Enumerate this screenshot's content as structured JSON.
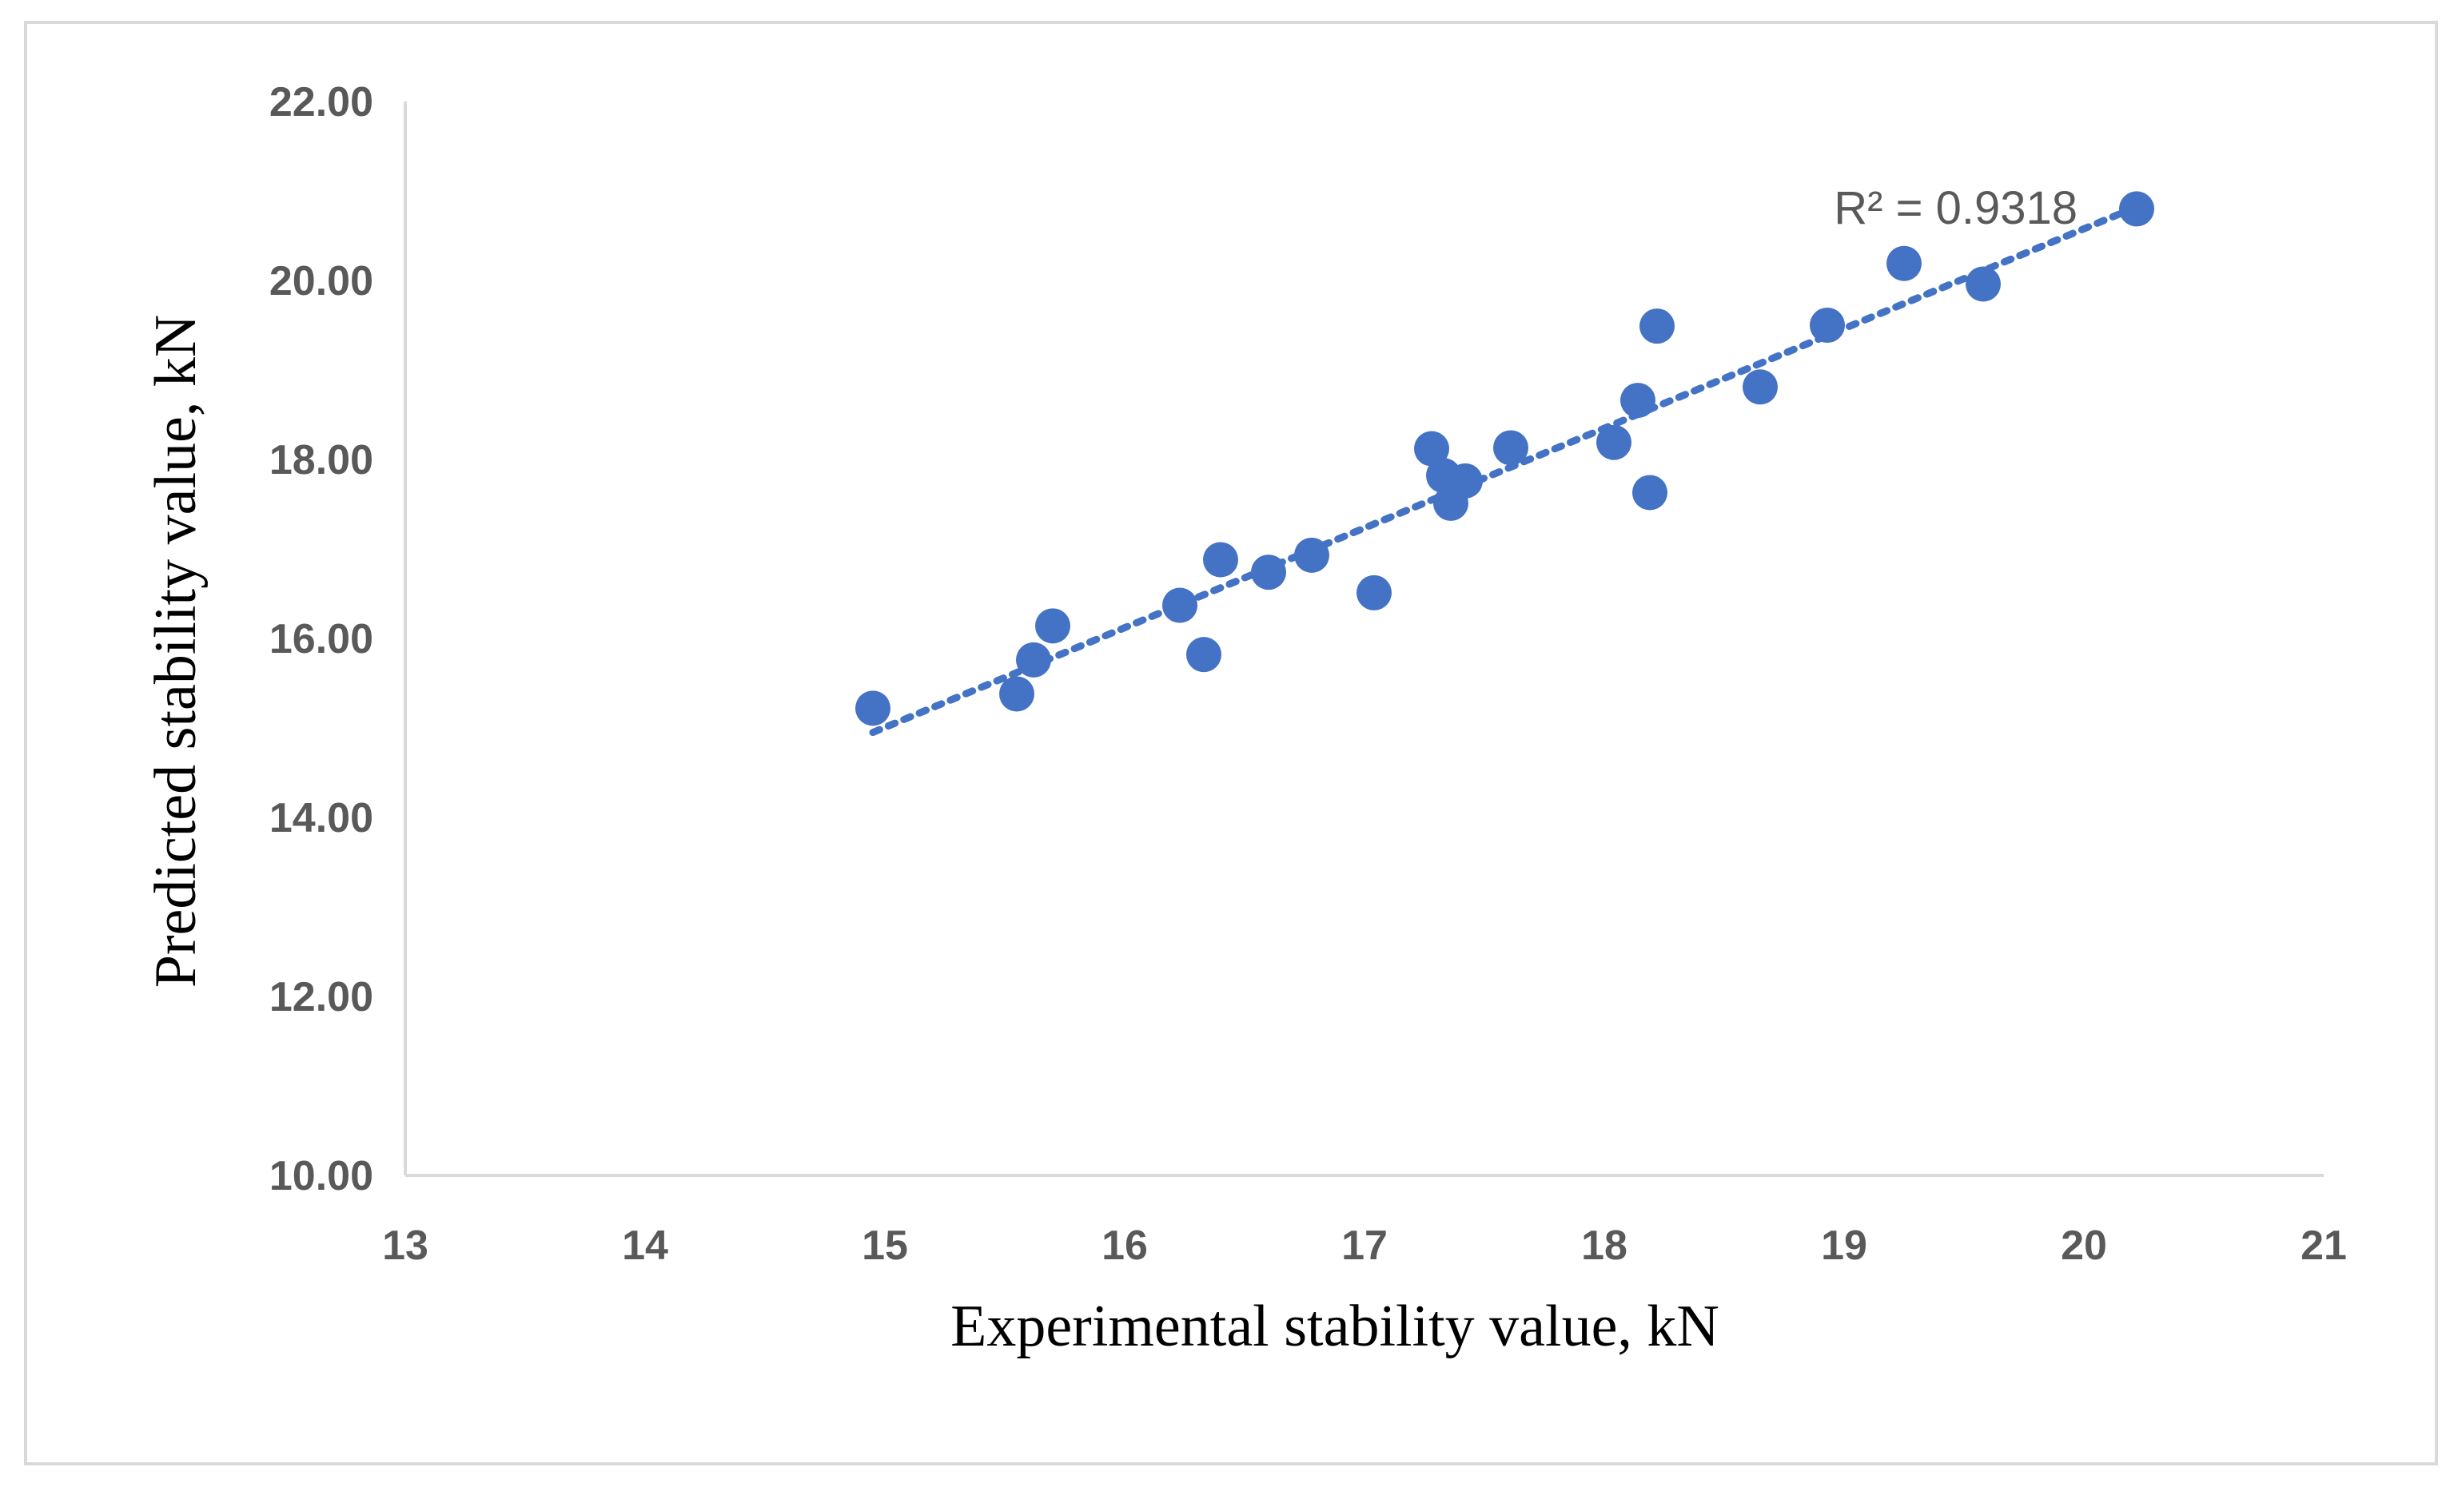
{
  "chart_data": {
    "type": "scatter",
    "xlabel": "Experimental stability value, kN",
    "ylabel": "Predicted stability value, kN",
    "xlim": [
      13,
      21
    ],
    "ylim": [
      10,
      22
    ],
    "x_ticks": [
      "13",
      "14",
      "15",
      "16",
      "17",
      "18",
      "19",
      "20",
      "21"
    ],
    "y_ticks": [
      "10.00",
      "12.00",
      "14.00",
      "16.00",
      "18.00",
      "20.00",
      "22.00"
    ],
    "grid": false,
    "legend": "none",
    "marker_color": "#4472c4",
    "axis_color": "#d9d9d9",
    "trendline": {
      "type": "linear",
      "style": "dotted",
      "x": [
        14.95,
        20.2
      ],
      "y": [
        14.95,
        20.8
      ]
    },
    "annotation": "R² = 0.9318",
    "points": [
      {
        "x": 14.95,
        "y": 15.22
      },
      {
        "x": 15.55,
        "y": 15.38
      },
      {
        "x": 15.62,
        "y": 15.76
      },
      {
        "x": 15.7,
        "y": 16.14
      },
      {
        "x": 16.23,
        "y": 16.37
      },
      {
        "x": 16.33,
        "y": 15.82
      },
      {
        "x": 16.4,
        "y": 16.88
      },
      {
        "x": 16.6,
        "y": 16.74
      },
      {
        "x": 16.78,
        "y": 16.93
      },
      {
        "x": 17.04,
        "y": 16.51
      },
      {
        "x": 17.28,
        "y": 18.12
      },
      {
        "x": 17.33,
        "y": 17.82
      },
      {
        "x": 17.36,
        "y": 17.51
      },
      {
        "x": 17.42,
        "y": 17.76
      },
      {
        "x": 17.61,
        "y": 18.13
      },
      {
        "x": 18.04,
        "y": 18.19
      },
      {
        "x": 18.14,
        "y": 18.66
      },
      {
        "x": 18.19,
        "y": 17.63
      },
      {
        "x": 18.22,
        "y": 19.49
      },
      {
        "x": 18.65,
        "y": 18.81
      },
      {
        "x": 18.93,
        "y": 19.5
      },
      {
        "x": 19.25,
        "y": 20.19
      },
      {
        "x": 19.58,
        "y": 19.96
      },
      {
        "x": 20.22,
        "y": 20.8
      }
    ]
  }
}
